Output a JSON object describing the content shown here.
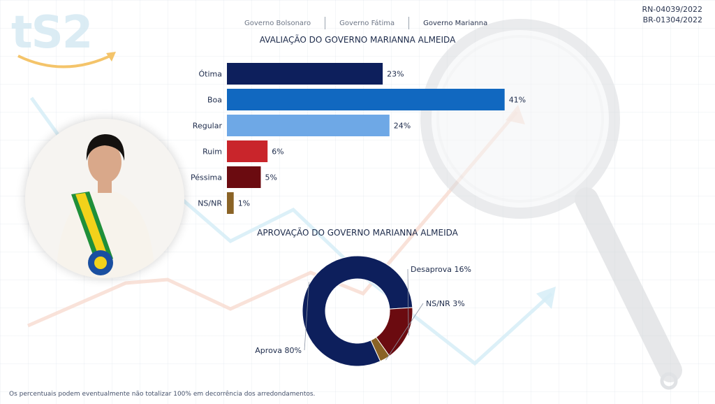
{
  "header": {
    "logo_text": "tS2",
    "tabs": [
      {
        "label": "Governo Bolsonaro",
        "active": false
      },
      {
        "label": "Governo Fátima",
        "active": false
      },
      {
        "label": "Governo Marianna",
        "active": true
      }
    ],
    "registration_codes": [
      "RN-04039/2022",
      "BR-01304/2022"
    ]
  },
  "colors": {
    "otima": "#0d1f5c",
    "boa": "#1168c0",
    "regular": "#6ea8e6",
    "ruim": "#c9252b",
    "pessima": "#6b0b10",
    "nsnr": "#8a6326",
    "aprova": "#0d1f5c",
    "desaprova": "#6b0b10"
  },
  "footnote": "Os percentuais podem eventualmente não totalizar 100% em decorrência dos arredondamentos.",
  "chart_data": [
    {
      "type": "bar",
      "orientation": "horizontal",
      "title": "AVALIAÇÃO DO GOVERNO MARIANNA ALMEIDA",
      "categories": [
        "Ótima",
        "Boa",
        "Regular",
        "Ruim",
        "Péssima",
        "NS/NR"
      ],
      "values": [
        23,
        41,
        24,
        6,
        5,
        1
      ],
      "value_labels": [
        "23%",
        "41%",
        "24%",
        "6%",
        "5%",
        "1%"
      ],
      "unit": "%",
      "grid": false,
      "legend": "none"
    },
    {
      "type": "pie",
      "variant": "donut",
      "title": "APROVAÇÃO DO GOVERNO MARIANNA ALMEIDA",
      "categories": [
        "Aprova",
        "Desaprova",
        "NS/NR"
      ],
      "values": [
        80,
        16,
        3
      ],
      "value_labels": [
        "Aprova 80%",
        "Desaprova 16%",
        "NS/NR 3%"
      ],
      "unit": "%",
      "legend": "none"
    }
  ]
}
